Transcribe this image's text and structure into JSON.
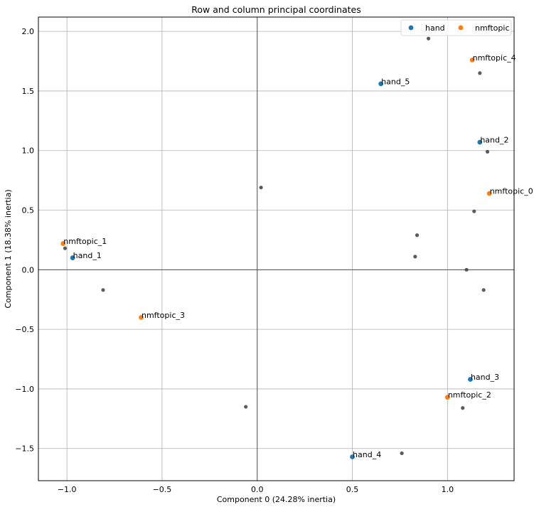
{
  "chart_data": {
    "type": "scatter",
    "title": "Row and column principal coordinates",
    "xlabel": "Component 0 (24.28% inertia)",
    "ylabel": "Component 1 (18.38% inertia)",
    "xlim": [
      -1.15,
      1.35
    ],
    "ylim": [
      -1.77,
      2.12
    ],
    "xticks": [
      -1.0,
      -0.5,
      0.0,
      0.5,
      1.0
    ],
    "xtick_labels": [
      "−1.0",
      "−0.5",
      "0.0",
      "0.5",
      "1.0"
    ],
    "yticks": [
      -1.5,
      -1.0,
      -0.5,
      0.0,
      0.5,
      1.0,
      1.5,
      2.0
    ],
    "ytick_labels": [
      "−1.5",
      "−1.0",
      "−0.5",
      "0.0",
      "0.5",
      "1.0",
      "1.5",
      "2.0"
    ],
    "grid": true,
    "legend_position": "top-right",
    "series": [
      {
        "name": "hand",
        "color": "#1f77b4",
        "points": [
          {
            "label": "hand_1",
            "x": -0.97,
            "y": 0.1
          },
          {
            "label": "hand_2",
            "x": 1.17,
            "y": 1.07
          },
          {
            "label": "hand_3",
            "x": 1.12,
            "y": -0.92
          },
          {
            "label": "hand_4",
            "x": 0.5,
            "y": -1.57
          },
          {
            "label": "hand_5",
            "x": 0.65,
            "y": 1.56
          }
        ]
      },
      {
        "name": "nmftopic",
        "color": "#ff7f0e",
        "points": [
          {
            "label": "nmftopic_0",
            "x": 1.22,
            "y": 0.64
          },
          {
            "label": "nmftopic_1",
            "x": -1.02,
            "y": 0.22
          },
          {
            "label": "nmftopic_2",
            "x": 1.0,
            "y": -1.07
          },
          {
            "label": "nmftopic_3",
            "x": -0.61,
            "y": -0.4
          },
          {
            "label": "nmftopic_4",
            "x": 1.13,
            "y": 1.76
          }
        ]
      }
    ],
    "row_points": {
      "color": "#404040",
      "points": [
        {
          "x": 0.9,
          "y": 1.94
        },
        {
          "x": 1.17,
          "y": 1.65
        },
        {
          "x": 1.21,
          "y": 0.99
        },
        {
          "x": 0.02,
          "y": 0.69
        },
        {
          "x": 1.14,
          "y": 0.49
        },
        {
          "x": 0.84,
          "y": 0.29
        },
        {
          "x": 0.83,
          "y": 0.11
        },
        {
          "x": 1.1,
          "y": 0.0
        },
        {
          "x": -1.01,
          "y": 0.18
        },
        {
          "x": -0.81,
          "y": -0.17
        },
        {
          "x": 1.19,
          "y": -0.17
        },
        {
          "x": -0.06,
          "y": -1.15
        },
        {
          "x": 1.08,
          "y": -1.16
        },
        {
          "x": 0.76,
          "y": -1.54
        }
      ]
    }
  }
}
